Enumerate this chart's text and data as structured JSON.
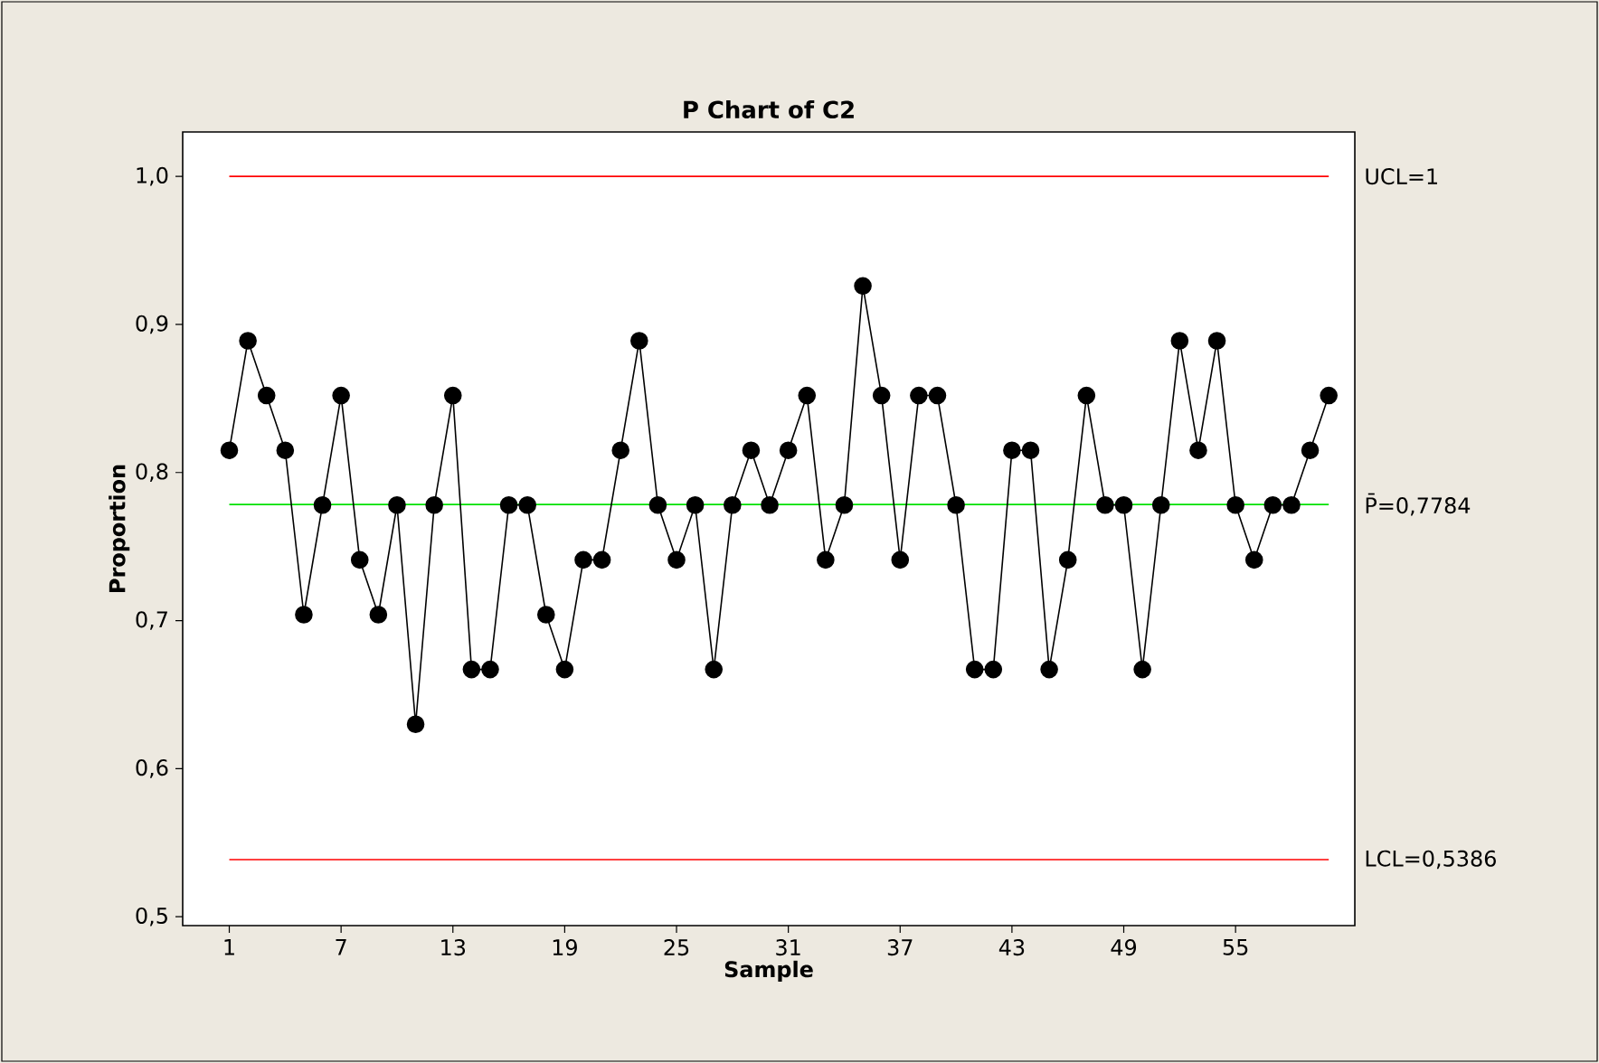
{
  "chart_data": {
    "type": "line",
    "title": "P Chart of C2",
    "xlabel": "Sample",
    "ylabel": "Proportion",
    "x": [
      1,
      2,
      3,
      4,
      5,
      6,
      7,
      8,
      9,
      10,
      11,
      12,
      13,
      14,
      15,
      16,
      17,
      18,
      19,
      20,
      21,
      22,
      23,
      24,
      25,
      26,
      27,
      28,
      29,
      30,
      31,
      32,
      33,
      34,
      35,
      36,
      37,
      38,
      39,
      40,
      41,
      42,
      43,
      44,
      45,
      46,
      47,
      48,
      49,
      50,
      51,
      52,
      53,
      54,
      55,
      56,
      57,
      58,
      59,
      60
    ],
    "series": [
      {
        "color": "#000000",
        "values": [
          0.815,
          0.889,
          0.852,
          0.815,
          0.704,
          0.778,
          0.852,
          0.741,
          0.704,
          0.778,
          0.63,
          0.778,
          0.852,
          0.667,
          0.667,
          0.778,
          0.778,
          0.704,
          0.667,
          0.741,
          0.741,
          0.815,
          0.889,
          0.778,
          0.741,
          0.778,
          0.667,
          0.778,
          0.815,
          0.778,
          0.815,
          0.852,
          0.741,
          0.778,
          0.926,
          0.852,
          0.741,
          0.852,
          0.852,
          0.778,
          0.667,
          0.667,
          0.815,
          0.815,
          0.667,
          0.741,
          0.852,
          0.778,
          0.778,
          0.667,
          0.778,
          0.889,
          0.815,
          0.889,
          0.778,
          0.741,
          0.778,
          0.778,
          0.815,
          0.852
        ]
      }
    ],
    "xlim": [
      -1.5,
      61.4
    ],
    "ylim": [
      0.494,
      1.03
    ],
    "xticks": [
      1,
      7,
      13,
      19,
      25,
      31,
      37,
      43,
      49,
      55
    ],
    "yticks": [
      {
        "value": 0.5,
        "label": "0,5"
      },
      {
        "value": 0.6,
        "label": "0,6"
      },
      {
        "value": 0.7,
        "label": "0,7"
      },
      {
        "value": 0.8,
        "label": "0,8"
      },
      {
        "value": 0.9,
        "label": "0,9"
      },
      {
        "value": 1.0,
        "label": "1,0"
      }
    ],
    "ref_lines": [
      {
        "axis": "y",
        "value": 1,
        "label": "UCL=1",
        "color": "#ff0000"
      },
      {
        "axis": "y",
        "value": 0.7784,
        "label": "P̄=0,7784",
        "color": "#00e000"
      },
      {
        "axis": "y",
        "value": 0.5386,
        "label": "LCL=0,5386",
        "color": "#ff0000"
      }
    ],
    "grid": false,
    "marker": "circle",
    "line_style": "solid"
  }
}
